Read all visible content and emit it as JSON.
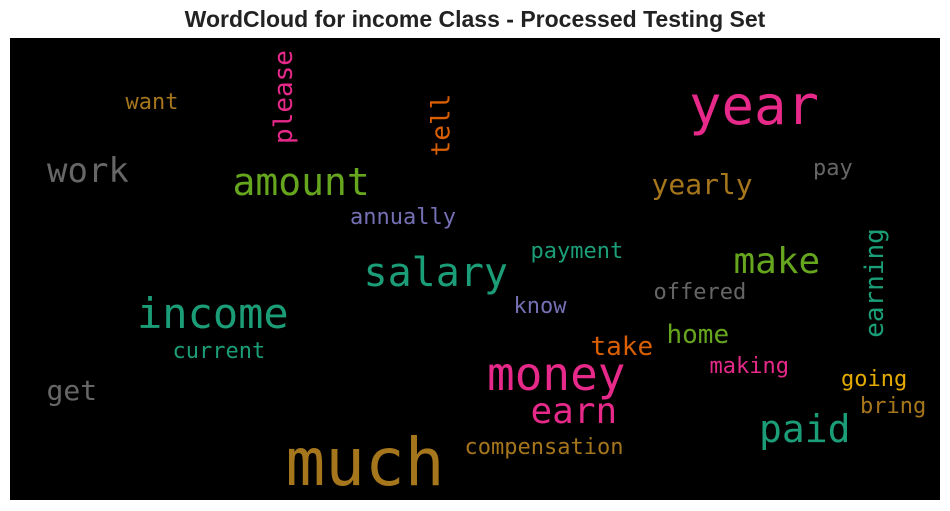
{
  "title": "WordCloud for income Class - Processed Testing Set",
  "chart_data": {
    "type": "wordcloud",
    "title": "WordCloud for income Class - Processed Testing Set",
    "background": "#000000",
    "words": [
      {
        "text": "much",
        "color": "#a6761d",
        "vertical": false
      },
      {
        "text": "year",
        "color": "#e7298a",
        "vertical": false
      },
      {
        "text": "money",
        "color": "#e7298a",
        "vertical": false
      },
      {
        "text": "income",
        "color": "#1b9e77",
        "vertical": false
      },
      {
        "text": "salary",
        "color": "#1b9e77",
        "vertical": false
      },
      {
        "text": "amount",
        "color": "#66a61e",
        "vertical": false
      },
      {
        "text": "paid",
        "color": "#1b9e77",
        "vertical": false
      },
      {
        "text": "earn",
        "color": "#e7298a",
        "vertical": false
      },
      {
        "text": "make",
        "color": "#66a61e",
        "vertical": false
      },
      {
        "text": "work",
        "color": "#666666",
        "vertical": false
      },
      {
        "text": "please",
        "color": "#e7298a",
        "vertical": true
      },
      {
        "text": "tell",
        "color": "#d95f02",
        "vertical": true
      },
      {
        "text": "earning",
        "color": "#1b9e77",
        "vertical": true
      },
      {
        "text": "yearly",
        "color": "#a6761d",
        "vertical": false
      },
      {
        "text": "home",
        "color": "#66a61e",
        "vertical": false
      },
      {
        "text": "take",
        "color": "#d95f02",
        "vertical": false
      },
      {
        "text": "get",
        "color": "#666666",
        "vertical": false
      },
      {
        "text": "compensation",
        "color": "#a6761d",
        "vertical": false
      },
      {
        "text": "payment",
        "color": "#1b9e77",
        "vertical": false
      },
      {
        "text": "annually",
        "color": "#7570b3",
        "vertical": false
      },
      {
        "text": "offered",
        "color": "#666666",
        "vertical": false
      },
      {
        "text": "current",
        "color": "#1b9e77",
        "vertical": false
      },
      {
        "text": "know",
        "color": "#7570b3",
        "vertical": false
      },
      {
        "text": "making",
        "color": "#e7298a",
        "vertical": false
      },
      {
        "text": "going",
        "color": "#e6ab02",
        "vertical": false
      },
      {
        "text": "bring",
        "color": "#a6761d",
        "vertical": false
      },
      {
        "text": "want",
        "color": "#a6761d",
        "vertical": false
      },
      {
        "text": "pay",
        "color": "#666666",
        "vertical": false
      }
    ]
  }
}
